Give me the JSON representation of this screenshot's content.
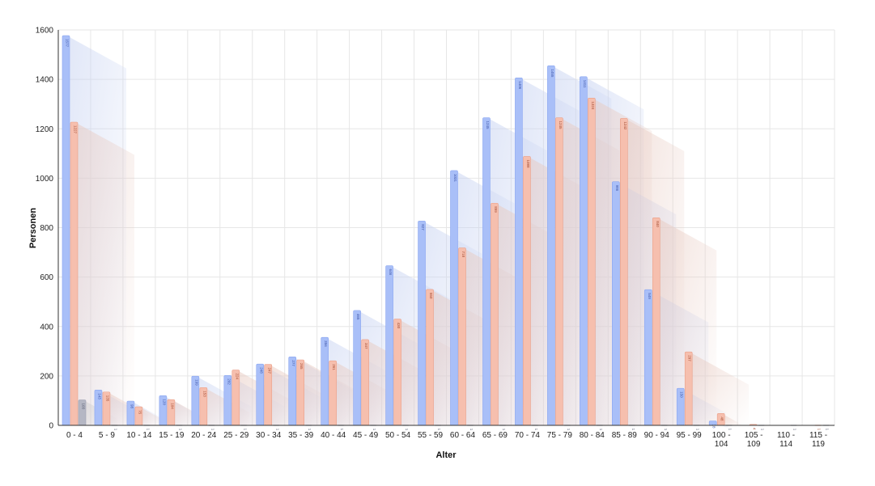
{
  "chart_data": {
    "type": "bar",
    "xlabel": "Alter",
    "ylabel": "Personen",
    "ylim": [
      0,
      1600
    ],
    "yticks": [
      0,
      200,
      400,
      600,
      800,
      1000,
      1200,
      1400,
      1600
    ],
    "grid": true,
    "categories": [
      "0 - 4",
      "5 - 9",
      "10 - 14",
      "15 - 19",
      "20 - 24",
      "25 - 29",
      "30 - 34",
      "35 - 39",
      "40 - 44",
      "45 - 49",
      "50 - 54",
      "55 - 59",
      "60 - 64",
      "65 - 69",
      "70 - 74",
      "75 - 79",
      "80 - 84",
      "85 - 89",
      "90 - 94",
      "95 - 99",
      "100 - 104",
      "105 - 109",
      "110 - 114",
      "115 - 119"
    ],
    "series": [
      {
        "color": "#a9bff8",
        "stroke": "#8aa6f0",
        "values": [
          1577,
          143,
          98,
          120,
          199,
          202,
          248,
          277,
          356,
          465,
          646,
          827,
          1031,
          1245,
          1406,
          1455,
          1411,
          986,
          549,
          150,
          18,
          0,
          0,
          0
        ]
      },
      {
        "color": "#f6bfae",
        "stroke": "#ea9f88",
        "values": [
          1227,
          135,
          75,
          104,
          153,
          224,
          247,
          265,
          261,
          347,
          430,
          550,
          718,
          899,
          1088,
          1245,
          1324,
          1242,
          840,
          297,
          48,
          4,
          0,
          1
        ]
      },
      {
        "color": "#b5b7c4",
        "stroke": "#9fa2b3",
        "values": [
          103,
          1,
          1,
          1,
          1,
          1,
          1,
          1,
          1,
          1,
          1,
          1,
          1,
          1,
          1,
          1,
          1,
          1,
          1,
          1,
          1,
          1,
          1,
          1
        ]
      }
    ]
  }
}
